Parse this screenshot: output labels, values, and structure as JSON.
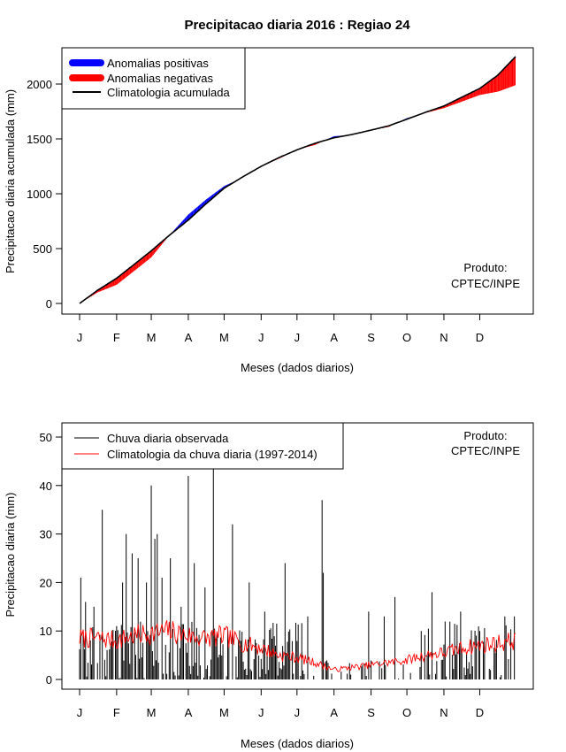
{
  "chart_data": [
    {
      "type": "area",
      "title": "Precipitacao diaria 2016 : Regiao 24",
      "xlabel": "Meses (dados diarios)",
      "ylabel": "Precipitacao diaria acumulada (mm)",
      "xlim": [
        1,
        366
      ],
      "ylim": [
        0,
        2250
      ],
      "yticks": [
        0,
        500,
        1000,
        1500,
        2000
      ],
      "month_labels": [
        "J",
        "F",
        "M",
        "A",
        "M",
        "J",
        "J",
        "A",
        "S",
        "O",
        "N",
        "D"
      ],
      "month_start_days": [
        1,
        32,
        61,
        92,
        122,
        153,
        183,
        214,
        245,
        275,
        306,
        336
      ],
      "legend": [
        {
          "label": "Anomalias positivas",
          "color": "#0000ff"
        },
        {
          "label": "Anomalias negativas",
          "color": "#ff0000"
        },
        {
          "label": "Climatologia acumulada",
          "color": "#000000"
        }
      ],
      "annotation": [
        "Produto:",
        "CPTEC/INPE"
      ],
      "series": [
        {
          "name": "Climatologia acumulada",
          "x": [
            1,
            16,
            32,
            46,
            61,
            76,
            92,
            106,
            122,
            137,
            153,
            168,
            183,
            198,
            214,
            229,
            245,
            260,
            275,
            290,
            306,
            321,
            336,
            351,
            366
          ],
          "y": [
            0,
            120,
            230,
            350,
            480,
            620,
            760,
            900,
            1050,
            1150,
            1250,
            1330,
            1400,
            1460,
            1510,
            1540,
            1580,
            1620,
            1680,
            1740,
            1800,
            1880,
            1960,
            2080,
            2250
          ]
        },
        {
          "name": "Precipitacao acumulada observada",
          "x": [
            1,
            16,
            32,
            46,
            61,
            76,
            92,
            106,
            122,
            137,
            153,
            168,
            183,
            198,
            214,
            229,
            245,
            260,
            275,
            290,
            306,
            321,
            336,
            351,
            366
          ],
          "y": [
            0,
            100,
            170,
            290,
            420,
            620,
            810,
            940,
            1070,
            1145,
            1250,
            1320,
            1400,
            1445,
            1525,
            1535,
            1580,
            1610,
            1690,
            1735,
            1780,
            1840,
            1900,
            1930,
            1990
          ]
        }
      ]
    },
    {
      "type": "bar",
      "title": "",
      "xlabel": "Meses (dados diarios)",
      "ylabel": "Precipitacao diaria (mm)",
      "xlim": [
        1,
        366
      ],
      "ylim": [
        0,
        52
      ],
      "yticks": [
        0,
        10,
        20,
        30,
        40,
        50
      ],
      "month_labels": [
        "J",
        "F",
        "M",
        "A",
        "M",
        "J",
        "J",
        "A",
        "S",
        "O",
        "N",
        "D"
      ],
      "month_start_days": [
        1,
        32,
        61,
        92,
        122,
        153,
        183,
        214,
        245,
        275,
        306,
        336
      ],
      "legend": [
        {
          "label": "Chuva diaria observada",
          "color": "#000000"
        },
        {
          "label": "Climatologia da chuva diaria (1997-2014)",
          "color": "#ff0000"
        }
      ],
      "annotation": [
        "Produto:",
        "CPTEC/INPE"
      ],
      "observed_peaks": [
        {
          "day": 2,
          "value": 21
        },
        {
          "day": 6,
          "value": 16
        },
        {
          "day": 13,
          "value": 15
        },
        {
          "day": 20,
          "value": 35
        },
        {
          "day": 37,
          "value": 20
        },
        {
          "day": 40,
          "value": 30
        },
        {
          "day": 45,
          "value": 26
        },
        {
          "day": 50,
          "value": 25
        },
        {
          "day": 57,
          "value": 20
        },
        {
          "day": 61,
          "value": 40
        },
        {
          "day": 64,
          "value": 29
        },
        {
          "day": 66,
          "value": 30
        },
        {
          "day": 70,
          "value": 21
        },
        {
          "day": 77,
          "value": 25
        },
        {
          "day": 86,
          "value": 15
        },
        {
          "day": 92,
          "value": 42
        },
        {
          "day": 97,
          "value": 24
        },
        {
          "day": 106,
          "value": 19
        },
        {
          "day": 113,
          "value": 44
        },
        {
          "day": 129,
          "value": 32
        },
        {
          "day": 143,
          "value": 20
        },
        {
          "day": 156,
          "value": 14
        },
        {
          "day": 173,
          "value": 24
        },
        {
          "day": 192,
          "value": 13
        },
        {
          "day": 204,
          "value": 37
        },
        {
          "day": 205,
          "value": 22
        },
        {
          "day": 243,
          "value": 14
        },
        {
          "day": 256,
          "value": 13
        },
        {
          "day": 265,
          "value": 17
        },
        {
          "day": 287,
          "value": 10
        },
        {
          "day": 296,
          "value": 18
        },
        {
          "day": 320,
          "value": 14
        },
        {
          "day": 336,
          "value": 10
        },
        {
          "day": 357,
          "value": 13
        },
        {
          "day": 365,
          "value": 13
        }
      ],
      "climatology": {
        "x": [
          1,
          16,
          32,
          46,
          61,
          76,
          92,
          106,
          122,
          137,
          153,
          168,
          183,
          198,
          214,
          229,
          245,
          260,
          275,
          290,
          306,
          321,
          336,
          351,
          366
        ],
        "y": [
          8.5,
          8.5,
          8.0,
          9.0,
          9.5,
          10.0,
          9.0,
          8.5,
          9.0,
          7.5,
          6.5,
          5.0,
          4.5,
          3.5,
          2.0,
          2.5,
          3.0,
          3.5,
          4.0,
          5.0,
          5.5,
          6.5,
          7.0,
          7.5,
          8.0
        ]
      }
    }
  ]
}
